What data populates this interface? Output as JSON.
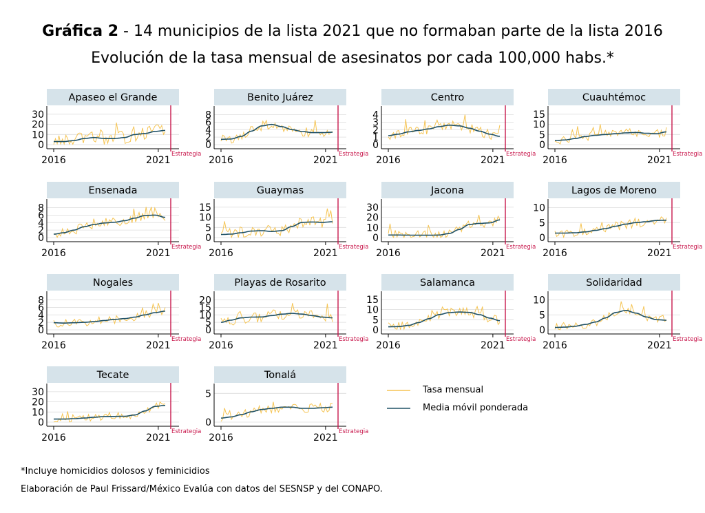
{
  "header": {
    "title_bold": "Gráfica 2",
    "title_rest": " - 14 municipios de la lista 2021 que no formaban parte de la lista 2016",
    "subtitle": "Evolución de la tasa mensual de asesinatos por cada 100,000 habs.*"
  },
  "footnotes": {
    "note": "*Incluye homicidios dolosos y feminicidios",
    "source": "Elaboración de Paul Frissard/México Evalúa con datos del SESNSP y del CONAPO."
  },
  "colors": {
    "monthly": "#f5c453",
    "smooth": "#1e5065",
    "strategy": "#c8164b",
    "panel_header": "#d6e3ea",
    "grid": "#dcdcdc"
  },
  "chart_data": {
    "type": "line",
    "x_start": "2016-01",
    "x_end": "2021-05",
    "x_ticks": [
      "2016",
      "2021"
    ],
    "strategy_label": "Estrategia",
    "legend": {
      "monthly": "Tasa mensual",
      "smooth": "Media móvil ponderada"
    },
    "panels": [
      {
        "name": "Apaseo el Grande",
        "yticks": [
          0,
          10,
          20,
          30
        ],
        "ylim": [
          0,
          34
        ],
        "smooth_knots": [
          3,
          3,
          4,
          6,
          7,
          6,
          6,
          7,
          10,
          11,
          13,
          14
        ],
        "noise": 6.5
      },
      {
        "name": "Benito Juárez",
        "yticks": [
          0,
          2,
          4,
          6,
          8
        ],
        "ylim": [
          0,
          9.2
        ],
        "smooth_knots": [
          1.4,
          1.5,
          2.2,
          3.6,
          5.0,
          5.4,
          4.8,
          4.0,
          3.5,
          3.2,
          3.2,
          3.3
        ],
        "noise": 1.3
      },
      {
        "name": "Centro",
        "yticks": [
          0,
          1,
          2,
          3,
          4
        ],
        "ylim": [
          0,
          4.6
        ],
        "smooth_knots": [
          1.2,
          1.4,
          1.7,
          1.9,
          2.1,
          2.4,
          2.6,
          2.5,
          2.2,
          1.8,
          1.4,
          1.1
        ],
        "noise": 0.7
      },
      {
        "name": "Cuauhtémoc",
        "yticks": [
          0,
          5,
          10,
          15
        ],
        "ylim": [
          0,
          17
        ],
        "smooth_knots": [
          2.0,
          2.3,
          3.0,
          4.0,
          4.6,
          5.0,
          5.4,
          5.8,
          6.0,
          5.6,
          5.4,
          6.3
        ],
        "noise": 2.3
      },
      {
        "name": "Ensenada",
        "yticks": [
          0,
          2,
          4,
          6,
          8
        ],
        "ylim": [
          0,
          9.2
        ],
        "smooth_knots": [
          0.9,
          1.3,
          2.0,
          2.9,
          3.5,
          3.9,
          4.1,
          4.5,
          5.2,
          5.9,
          6.0,
          5.4
        ],
        "noise": 1.3
      },
      {
        "name": "Guaymas",
        "yticks": [
          0,
          5,
          10,
          15
        ],
        "ylim": [
          0,
          17
        ],
        "smooth_knots": [
          1.5,
          1.7,
          2.4,
          3.2,
          3.4,
          3.0,
          3.4,
          5.5,
          7.5,
          7.7,
          7.5,
          7.8
        ],
        "noise": 3.0
      },
      {
        "name": "Jacona",
        "yticks": [
          0,
          10,
          20,
          30
        ],
        "ylim": [
          0,
          34
        ],
        "smooth_knots": [
          2.5,
          2.5,
          2.4,
          2.3,
          2.3,
          2.5,
          4.0,
          8.0,
          13.0,
          14.0,
          14.5,
          17.5
        ],
        "noise": 4.5
      },
      {
        "name": "Lagos de Moreno",
        "yticks": [
          0,
          5,
          10
        ],
        "ylim": [
          0,
          11.5
        ],
        "smooth_knots": [
          1.5,
          1.5,
          1.6,
          1.9,
          2.4,
          3.0,
          3.8,
          4.5,
          5.0,
          5.3,
          5.7,
          5.8
        ],
        "noise": 1.6
      },
      {
        "name": "Nogales",
        "yticks": [
          0,
          2,
          4,
          6,
          8
        ],
        "ylim": [
          0,
          9.2
        ],
        "smooth_knots": [
          1.9,
          1.8,
          1.9,
          2.0,
          2.2,
          2.5,
          2.8,
          3.0,
          3.4,
          4.0,
          4.6,
          5.0
        ],
        "noise": 1.1
      },
      {
        "name": "Playas de Rosarito",
        "yticks": [
          0,
          5,
          10,
          15,
          20
        ],
        "ylim": [
          0,
          23
        ],
        "smooth_knots": [
          5.0,
          6.5,
          8.0,
          8.5,
          8.6,
          9.5,
          10.5,
          11.0,
          10.5,
          9.5,
          8.5,
          8.0
        ],
        "noise": 3.8
      },
      {
        "name": "Salamanca",
        "yticks": [
          0,
          5,
          10,
          15
        ],
        "ylim": [
          0,
          17
        ],
        "smooth_knots": [
          1.5,
          1.6,
          2.2,
          3.6,
          5.5,
          7.5,
          8.5,
          8.8,
          8.6,
          7.5,
          5.8,
          4.5
        ],
        "noise": 2.3
      },
      {
        "name": "Solidaridad",
        "yticks": [
          0,
          5,
          10
        ],
        "ylim": [
          0,
          11.5
        ],
        "smooth_knots": [
          0.8,
          0.9,
          1.2,
          1.8,
          2.6,
          4.0,
          5.8,
          6.5,
          5.6,
          4.3,
          3.4,
          3.2
        ],
        "noise": 1.3
      },
      {
        "name": "Tecate",
        "yticks": [
          0,
          10,
          20,
          30
        ],
        "ylim": [
          0,
          34
        ],
        "smooth_knots": [
          3.0,
          3.0,
          3.4,
          4.0,
          4.8,
          5.5,
          5.6,
          5.8,
          7.0,
          11.0,
          15.5,
          16.5
        ],
        "noise": 4.0
      },
      {
        "name": "Tonalá",
        "yticks": [
          0,
          5
        ],
        "ylim": [
          0,
          6
        ],
        "smooth_knots": [
          0.7,
          0.9,
          1.3,
          1.8,
          2.2,
          2.4,
          2.6,
          2.6,
          2.4,
          2.4,
          2.5,
          2.6
        ],
        "noise": 0.8
      }
    ]
  }
}
